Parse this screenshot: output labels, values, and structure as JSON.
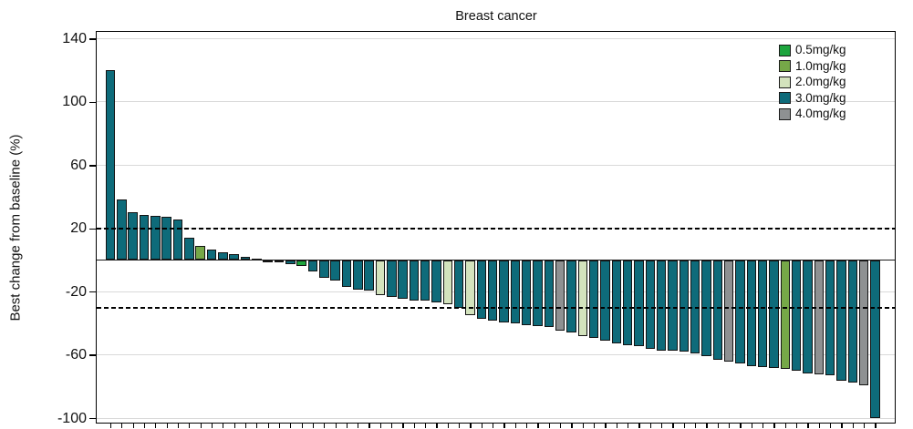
{
  "title": "Breast cancer",
  "chart_data": {
    "type": "bar",
    "subtype": "waterfall",
    "title": "Breast cancer",
    "xlabel": "",
    "ylabel": "Best change from baseline (%)",
    "ylim": [
      -101,
      145
    ],
    "yticks": [
      140,
      100,
      60,
      20,
      -20,
      -60,
      -100
    ],
    "grid": "horizontal-major",
    "grid_color": "#d9d9d9",
    "reference_lines": [
      {
        "y": 20,
        "style": "dashed",
        "color": "#000000"
      },
      {
        "y": -30,
        "style": "dashed",
        "color": "#000000"
      }
    ],
    "zero_line": {
      "y": 0,
      "style": "solid",
      "color": "#1a1a1a"
    },
    "legend_position": "top-right",
    "legend": [
      {
        "dose": "0.5",
        "label": "0.5mg/kg",
        "color": "#1da53d"
      },
      {
        "dose": "1.0",
        "label": "1.0mg/kg",
        "color": "#76a848"
      },
      {
        "dose": "2.0",
        "label": "2.0mg/kg",
        "color": "#d3e3bd"
      },
      {
        "dose": "3.0",
        "label": "3.0mg/kg",
        "color": "#0e6b7a"
      },
      {
        "dose": "4.0",
        "label": "4.0mg/kg",
        "color": "#8e9192"
      }
    ],
    "values": [
      120,
      38,
      30,
      28.5,
      28,
      27.5,
      25.5,
      14,
      9,
      6.5,
      5,
      3.5,
      2,
      1,
      -0.5,
      -1.5,
      -2.5,
      -4,
      -7,
      -11,
      -13,
      -17,
      -18.5,
      -19.5,
      -22,
      -23.5,
      -24.5,
      -25.5,
      -25.5,
      -26.5,
      -28,
      -30,
      -35,
      -37,
      -38.5,
      -39.5,
      -40,
      -41,
      -41.5,
      -42.5,
      -44.5,
      -46,
      -48,
      -49,
      -51,
      -52.5,
      -54,
      -54.5,
      -56,
      -57,
      -57.5,
      -58,
      -59,
      -61,
      -63,
      -64,
      -65.5,
      -67,
      -67.5,
      -68.5,
      -69,
      -70,
      -71.5,
      -72,
      -73,
      -76.5,
      -77.5,
      -79,
      -100
    ],
    "doses": [
      "3.0",
      "3.0",
      "3.0",
      "3.0",
      "3.0",
      "3.0",
      "3.0",
      "3.0",
      "1.0",
      "3.0",
      "3.0",
      "3.0",
      "3.0",
      "3.0",
      "3.0",
      "3.0",
      "3.0",
      "0.5",
      "3.0",
      "3.0",
      "3.0",
      "3.0",
      "3.0",
      "3.0",
      "2.0",
      "3.0",
      "3.0",
      "3.0",
      "3.0",
      "3.0",
      "2.0",
      "3.0",
      "2.0",
      "3.0",
      "3.0",
      "3.0",
      "3.0",
      "3.0",
      "3.0",
      "3.0",
      "4.0",
      "3.0",
      "2.0",
      "3.0",
      "3.0",
      "3.0",
      "3.0",
      "3.0",
      "3.0",
      "3.0",
      "3.0",
      "3.0",
      "3.0",
      "3.0",
      "3.0",
      "4.0",
      "3.0",
      "3.0",
      "3.0",
      "3.0",
      "1.0",
      "3.0",
      "3.0",
      "4.0",
      "3.0",
      "3.0",
      "3.0",
      "4.0",
      "3.0"
    ]
  }
}
